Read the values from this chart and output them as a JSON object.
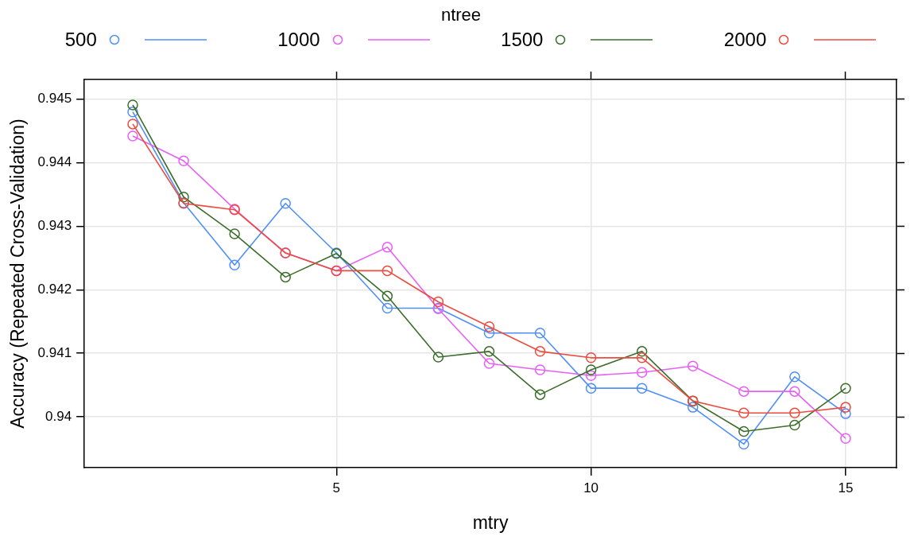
{
  "chart_data": {
    "type": "line",
    "xlabel": "mtry",
    "ylabel": "Accuracy (Repeated Cross-Validation)",
    "legend_title": "ntree",
    "legend": "top",
    "grid": true,
    "marker": "circle",
    "line_style": "solid",
    "x": [
      1,
      2,
      3,
      4,
      5,
      6,
      7,
      8,
      9,
      10,
      11,
      12,
      13,
      14,
      15
    ],
    "xlim": [
      0.05,
      16
    ],
    "xticks": [
      5,
      10,
      15
    ],
    "ylim": [
      0.9392,
      0.94531
    ],
    "yticks": [
      0.94,
      0.941,
      0.942,
      0.943,
      0.944,
      0.945
    ],
    "series": [
      {
        "name": "500",
        "color": "#4f8ff7",
        "values": [
          0.9448,
          0.94337,
          0.94239,
          0.94336,
          0.94258,
          0.94171,
          0.94171,
          0.94132,
          0.94132,
          0.94045,
          0.94045,
          0.94015,
          0.93957,
          0.94063,
          0.94005
        ]
      },
      {
        "name": "1000",
        "color": "#e75ff4",
        "values": [
          0.94442,
          0.94403,
          0.94327,
          0.94258,
          0.9423,
          0.94267,
          0.9417,
          0.94084,
          0.94074,
          0.94065,
          0.9407,
          0.9408,
          0.9404,
          0.9404,
          0.93966
        ]
      },
      {
        "name": "1500",
        "color": "#3c6e2c",
        "values": [
          0.94491,
          0.94346,
          0.94288,
          0.9422,
          0.94257,
          0.9419,
          0.94094,
          0.94103,
          0.94035,
          0.94074,
          0.94103,
          0.94025,
          0.93977,
          0.93987,
          0.94045
        ]
      },
      {
        "name": "2000",
        "color": "#ec4c3f",
        "values": [
          0.94461,
          0.94336,
          0.94326,
          0.94258,
          0.9423,
          0.9423,
          0.94181,
          0.94142,
          0.94103,
          0.94093,
          0.94093,
          0.94025,
          0.94006,
          0.94006,
          0.94015
        ]
      }
    ]
  }
}
